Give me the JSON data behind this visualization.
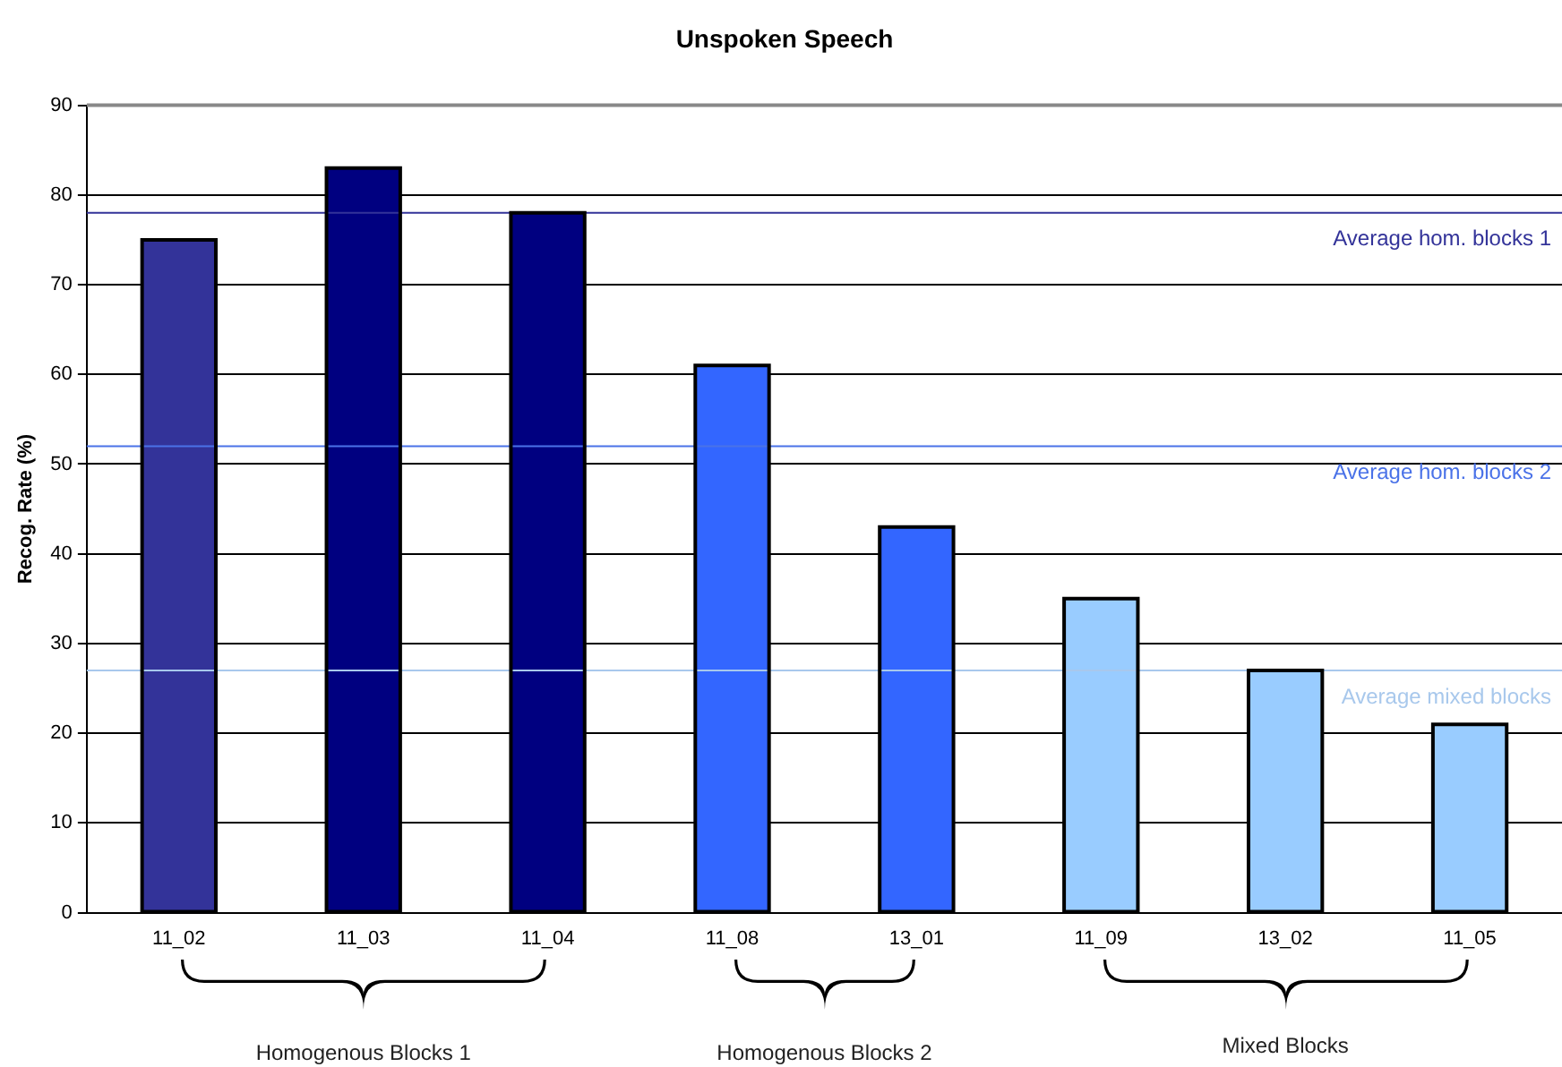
{
  "chart_data": {
    "type": "bar",
    "title": "Unspoken Speech",
    "ylabel": "Recog. Rate (%)",
    "categories": [
      "11_02",
      "11_03",
      "11_04",
      "11_08",
      "13_01",
      "11_09",
      "13_02",
      "11_05"
    ],
    "values": [
      75,
      83,
      78,
      61,
      43,
      35,
      27,
      21
    ],
    "colors": [
      "#333399",
      "#000080",
      "#000080",
      "#3366ff",
      "#3366ff",
      "#99ccff",
      "#99ccff",
      "#99ccff"
    ],
    "ylim": [
      0,
      90
    ],
    "yticks": [
      0,
      10,
      20,
      30,
      40,
      50,
      60,
      70,
      80,
      90
    ],
    "grid": "y",
    "legend": false,
    "ref_lines": [
      {
        "axis": "y",
        "value": 78,
        "label": "Average hom. blocks 1",
        "color": "#333399"
      },
      {
        "axis": "y",
        "value": 52,
        "label": "Average hom. blocks 2",
        "color": "#4a72e8"
      },
      {
        "axis": "y",
        "value": 27,
        "label": "Average mixed blocks",
        "color": "#a8c8ec"
      }
    ],
    "annotations": [
      "Homogenous Blocks 1",
      "Homogenous Blocks 2",
      "Mixed Blocks"
    ]
  }
}
